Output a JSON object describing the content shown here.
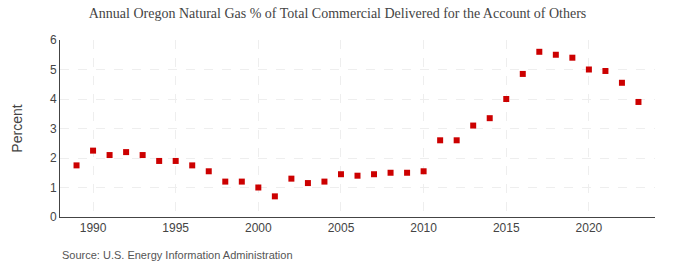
{
  "chart_data": {
    "type": "scatter",
    "title": "Annual Oregon Natural Gas % of Total Commercial Delivered for the Account of Others",
    "ylabel": "Percent",
    "annotations": [
      "Source: U.S. Energy Information Administration"
    ],
    "x": [
      1989,
      1990,
      1991,
      1992,
      1993,
      1994,
      1995,
      1996,
      1997,
      1998,
      1999,
      2000,
      2001,
      2002,
      2003,
      2004,
      2005,
      2006,
      2007,
      2008,
      2009,
      2010,
      2011,
      2012,
      2013,
      2014,
      2015,
      2016,
      2017,
      2018,
      2019,
      2020,
      2021,
      2022,
      2023
    ],
    "values": [
      1.75,
      2.25,
      2.1,
      2.2,
      2.1,
      1.9,
      1.9,
      1.75,
      1.55,
      1.2,
      1.2,
      1.0,
      0.7,
      1.3,
      1.15,
      1.2,
      1.45,
      1.4,
      1.45,
      1.5,
      1.5,
      1.55,
      2.6,
      2.6,
      3.1,
      3.35,
      4.0,
      4.85,
      5.6,
      5.5,
      5.4,
      5.0,
      4.95,
      4.55,
      3.9
    ],
    "color": "#cc0000",
    "marker": "square",
    "xlim": [
      1988,
      2024
    ],
    "xticks": [
      1990,
      1995,
      2000,
      2005,
      2010,
      2015,
      2020
    ],
    "ylim": [
      0,
      6
    ],
    "yticks": [
      0,
      1,
      2,
      3,
      4,
      5,
      6
    ],
    "grid": true
  }
}
